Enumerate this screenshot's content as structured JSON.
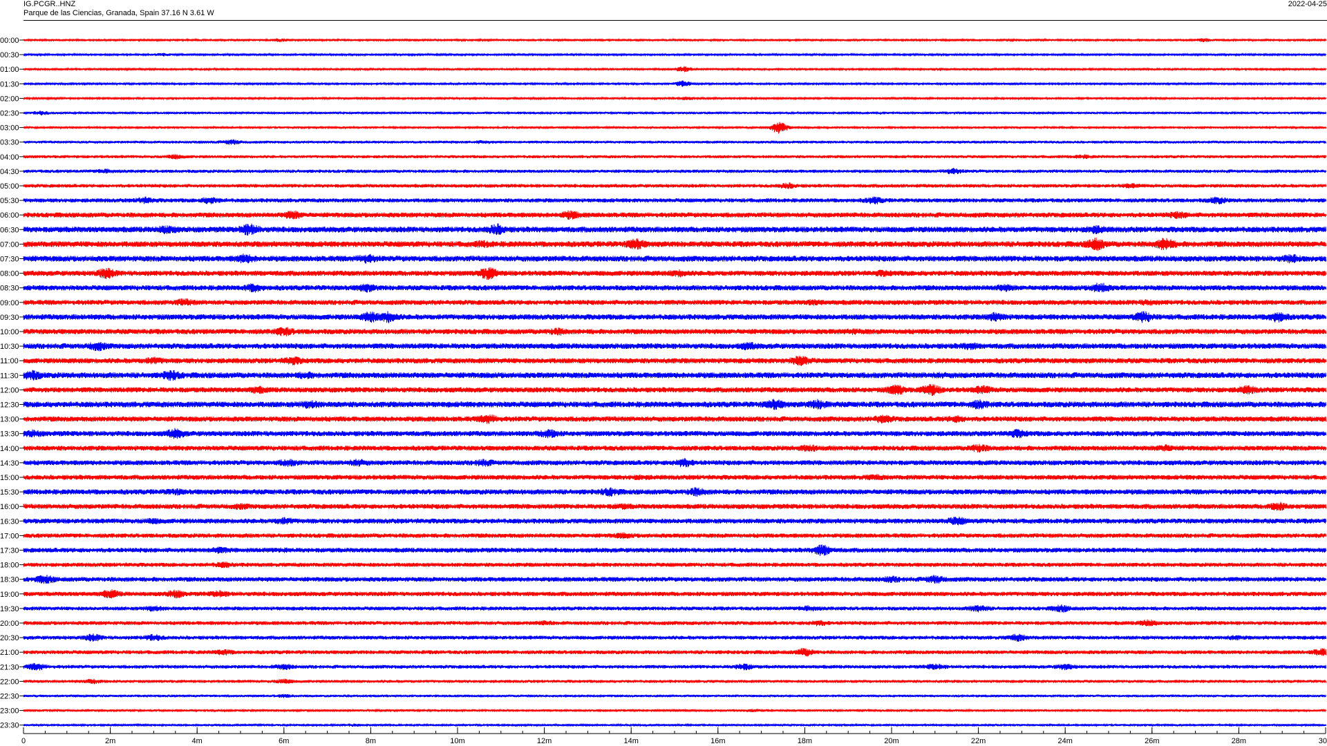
{
  "header": {
    "station": "IG.PCGR..HNZ",
    "location": "Parque de las Ciencias, Granada, Spain  37.16 N 3.61 W",
    "date": "2022-04-25"
  },
  "colors": {
    "odd_rows": "#ff0000",
    "even_rows": "#0000ff",
    "axis": "#000000"
  },
  "chart_data": {
    "type": "line",
    "title": "IG.PCGR..HNZ",
    "subtitle": "Parque de las Ciencias, Granada, Spain  37.16 N 3.61 W",
    "xlabel": "",
    "ylabel": "",
    "x_unit": "minutes",
    "xlim": [
      0,
      30
    ],
    "x_ticks": [
      {
        "value": 0,
        "label": "0"
      },
      {
        "value": 2,
        "label": "2m"
      },
      {
        "value": 4,
        "label": "4m"
      },
      {
        "value": 6,
        "label": "6m"
      },
      {
        "value": 8,
        "label": "8m"
      },
      {
        "value": 10,
        "label": "10m"
      },
      {
        "value": 12,
        "label": "12m"
      },
      {
        "value": 14,
        "label": "14m"
      },
      {
        "value": 16,
        "label": "16m"
      },
      {
        "value": 18,
        "label": "18m"
      },
      {
        "value": 20,
        "label": "20m"
      },
      {
        "value": 22,
        "label": "22m"
      },
      {
        "value": 24,
        "label": "24m"
      },
      {
        "value": 26,
        "label": "26m"
      },
      {
        "value": 28,
        "label": "28m"
      },
      {
        "value": 30,
        "label": "30"
      }
    ],
    "series": [
      {
        "name": "00:00",
        "amplitude": 0.15,
        "bursts": [
          {
            "t": 5.9,
            "a": 0.3
          },
          {
            "t": 27.2,
            "a": 0.3
          }
        ]
      },
      {
        "name": "00:30",
        "amplitude": 0.13,
        "bursts": [
          {
            "t": 3.2,
            "a": 0.25
          }
        ]
      },
      {
        "name": "01:00",
        "amplitude": 0.15,
        "bursts": [
          {
            "t": 15.2,
            "a": 0.45
          },
          {
            "t": 21.1,
            "a": 0.25
          }
        ]
      },
      {
        "name": "01:30",
        "amplitude": 0.13,
        "bursts": [
          {
            "t": 15.2,
            "a": 0.5
          }
        ]
      },
      {
        "name": "02:00",
        "amplitude": 0.14,
        "bursts": [
          {
            "t": 15.3,
            "a": 0.3
          }
        ]
      },
      {
        "name": "02:30",
        "amplitude": 0.16,
        "bursts": [
          {
            "t": 0.4,
            "a": 0.35
          }
        ]
      },
      {
        "name": "03:00",
        "amplitude": 0.15,
        "bursts": [
          {
            "t": 17.4,
            "a": 0.9
          }
        ]
      },
      {
        "name": "03:30",
        "amplitude": 0.2,
        "bursts": [
          {
            "t": 4.8,
            "a": 0.45
          },
          {
            "t": 10.6,
            "a": 0.3
          }
        ]
      },
      {
        "name": "04:00",
        "amplitude": 0.22,
        "bursts": [
          {
            "t": 3.5,
            "a": 0.4
          },
          {
            "t": 24.4,
            "a": 0.35
          }
        ]
      },
      {
        "name": "04:30",
        "amplitude": 0.24,
        "bursts": [
          {
            "t": 1.9,
            "a": 0.4
          },
          {
            "t": 21.4,
            "a": 0.5
          }
        ]
      },
      {
        "name": "05:00",
        "amplitude": 0.26,
        "bursts": [
          {
            "t": 17.6,
            "a": 0.5
          },
          {
            "t": 25.5,
            "a": 0.4
          }
        ]
      },
      {
        "name": "05:30",
        "amplitude": 0.3,
        "bursts": [
          {
            "t": 2.8,
            "a": 0.55
          },
          {
            "t": 4.3,
            "a": 0.6
          },
          {
            "t": 19.6,
            "a": 0.6
          },
          {
            "t": 27.5,
            "a": 0.6
          }
        ]
      },
      {
        "name": "06:00",
        "amplitude": 0.36,
        "bursts": [
          {
            "t": 6.2,
            "a": 0.7
          },
          {
            "t": 12.6,
            "a": 0.7
          },
          {
            "t": 26.6,
            "a": 0.6
          }
        ]
      },
      {
        "name": "06:30",
        "amplitude": 0.42,
        "bursts": [
          {
            "t": 3.3,
            "a": 0.7
          },
          {
            "t": 5.2,
            "a": 0.95
          },
          {
            "t": 10.9,
            "a": 0.9
          },
          {
            "t": 24.7,
            "a": 0.7
          }
        ]
      },
      {
        "name": "07:00",
        "amplitude": 0.42,
        "bursts": [
          {
            "t": 14.1,
            "a": 0.9
          },
          {
            "t": 24.7,
            "a": 1.0
          },
          {
            "t": 26.3,
            "a": 1.0
          },
          {
            "t": 10.6,
            "a": 0.6
          }
        ]
      },
      {
        "name": "07:30",
        "amplitude": 0.42,
        "bursts": [
          {
            "t": 5.1,
            "a": 0.75
          },
          {
            "t": 7.9,
            "a": 0.75
          },
          {
            "t": 29.2,
            "a": 0.7
          }
        ]
      },
      {
        "name": "08:00",
        "amplitude": 0.38,
        "bursts": [
          {
            "t": 1.9,
            "a": 0.85
          },
          {
            "t": 10.7,
            "a": 1.0
          },
          {
            "t": 15.1,
            "a": 0.6
          },
          {
            "t": 19.8,
            "a": 0.55
          }
        ]
      },
      {
        "name": "08:30",
        "amplitude": 0.38,
        "bursts": [
          {
            "t": 5.3,
            "a": 0.7
          },
          {
            "t": 7.9,
            "a": 0.7
          },
          {
            "t": 22.6,
            "a": 0.6
          },
          {
            "t": 24.8,
            "a": 0.8
          }
        ]
      },
      {
        "name": "09:00",
        "amplitude": 0.36,
        "bursts": [
          {
            "t": 3.7,
            "a": 0.6
          },
          {
            "t": 18.2,
            "a": 0.5
          },
          {
            "t": 25.9,
            "a": 0.5
          }
        ]
      },
      {
        "name": "09:30",
        "amplitude": 0.4,
        "bursts": [
          {
            "t": 8.0,
            "a": 0.85
          },
          {
            "t": 8.4,
            "a": 0.9
          },
          {
            "t": 22.4,
            "a": 0.75
          },
          {
            "t": 25.8,
            "a": 0.9
          },
          {
            "t": 28.9,
            "a": 0.85
          }
        ]
      },
      {
        "name": "10:00",
        "amplitude": 0.38,
        "bursts": [
          {
            "t": 6.0,
            "a": 0.75
          },
          {
            "t": 12.3,
            "a": 0.6
          },
          {
            "t": 19.1,
            "a": 0.5
          }
        ]
      },
      {
        "name": "10:30",
        "amplitude": 0.4,
        "bursts": [
          {
            "t": 1.7,
            "a": 0.75
          },
          {
            "t": 16.7,
            "a": 0.65
          },
          {
            "t": 21.8,
            "a": 0.6
          }
        ]
      },
      {
        "name": "11:00",
        "amplitude": 0.38,
        "bursts": [
          {
            "t": 6.2,
            "a": 0.7
          },
          {
            "t": 17.9,
            "a": 0.85
          },
          {
            "t": 3.0,
            "a": 0.6
          }
        ]
      },
      {
        "name": "11:30",
        "amplitude": 0.42,
        "bursts": [
          {
            "t": 0.2,
            "a": 0.8
          },
          {
            "t": 3.4,
            "a": 0.85
          },
          {
            "t": 6.5,
            "a": 0.6
          },
          {
            "t": 21.1,
            "a": 0.5
          }
        ]
      },
      {
        "name": "12:00",
        "amplitude": 0.38,
        "bursts": [
          {
            "t": 5.4,
            "a": 0.6
          },
          {
            "t": 20.1,
            "a": 0.85
          },
          {
            "t": 20.9,
            "a": 0.95
          },
          {
            "t": 22.1,
            "a": 0.7
          },
          {
            "t": 28.2,
            "a": 0.7
          }
        ]
      },
      {
        "name": "12:30",
        "amplitude": 0.42,
        "bursts": [
          {
            "t": 6.6,
            "a": 0.7
          },
          {
            "t": 17.3,
            "a": 0.85
          },
          {
            "t": 18.3,
            "a": 0.8
          },
          {
            "t": 22.0,
            "a": 0.75
          }
        ]
      },
      {
        "name": "13:00",
        "amplitude": 0.38,
        "bursts": [
          {
            "t": 10.7,
            "a": 0.75
          },
          {
            "t": 19.8,
            "a": 0.7
          },
          {
            "t": 21.5,
            "a": 0.6
          }
        ]
      },
      {
        "name": "13:30",
        "amplitude": 0.38,
        "bursts": [
          {
            "t": 0.2,
            "a": 0.6
          },
          {
            "t": 3.5,
            "a": 0.8
          },
          {
            "t": 12.1,
            "a": 0.75
          },
          {
            "t": 22.9,
            "a": 0.7
          }
        ]
      },
      {
        "name": "14:00",
        "amplitude": 0.36,
        "bursts": [
          {
            "t": 18.1,
            "a": 0.6
          },
          {
            "t": 26.3,
            "a": 0.6
          },
          {
            "t": 22.0,
            "a": 0.7
          }
        ]
      },
      {
        "name": "14:30",
        "amplitude": 0.36,
        "bursts": [
          {
            "t": 6.1,
            "a": 0.6
          },
          {
            "t": 7.7,
            "a": 0.6
          },
          {
            "t": 10.6,
            "a": 0.6
          },
          {
            "t": 15.2,
            "a": 0.75
          }
        ]
      },
      {
        "name": "15:00",
        "amplitude": 0.35,
        "bursts": [
          {
            "t": 19.6,
            "a": 0.5
          },
          {
            "t": 14.2,
            "a": 0.45
          }
        ]
      },
      {
        "name": "15:30",
        "amplitude": 0.38,
        "bursts": [
          {
            "t": 3.5,
            "a": 0.55
          },
          {
            "t": 13.5,
            "a": 0.7
          },
          {
            "t": 15.5,
            "a": 0.7
          }
        ]
      },
      {
        "name": "16:00",
        "amplitude": 0.36,
        "bursts": [
          {
            "t": 5.0,
            "a": 0.5
          },
          {
            "t": 13.8,
            "a": 0.5
          },
          {
            "t": 28.9,
            "a": 0.7
          }
        ]
      },
      {
        "name": "16:30",
        "amplitude": 0.36,
        "bursts": [
          {
            "t": 6.0,
            "a": 0.6
          },
          {
            "t": 21.5,
            "a": 0.7
          },
          {
            "t": 3.0,
            "a": 0.5
          }
        ]
      },
      {
        "name": "17:00",
        "amplitude": 0.32,
        "bursts": [
          {
            "t": 13.8,
            "a": 0.5
          }
        ]
      },
      {
        "name": "17:30",
        "amplitude": 0.34,
        "bursts": [
          {
            "t": 4.5,
            "a": 0.55
          },
          {
            "t": 18.4,
            "a": 0.9
          },
          {
            "t": 6.0,
            "a": 0.4
          }
        ]
      },
      {
        "name": "18:00",
        "amplitude": 0.3,
        "bursts": [
          {
            "t": 4.6,
            "a": 0.5
          }
        ]
      },
      {
        "name": "18:30",
        "amplitude": 0.34,
        "bursts": [
          {
            "t": 0.5,
            "a": 0.7
          },
          {
            "t": 20.0,
            "a": 0.55
          },
          {
            "t": 21.0,
            "a": 0.7
          }
        ]
      },
      {
        "name": "19:00",
        "amplitude": 0.32,
        "bursts": [
          {
            "t": 2.0,
            "a": 0.7
          },
          {
            "t": 3.5,
            "a": 0.65
          },
          {
            "t": 4.5,
            "a": 0.55
          }
        ]
      },
      {
        "name": "19:30",
        "amplitude": 0.28,
        "bursts": [
          {
            "t": 3.0,
            "a": 0.5
          },
          {
            "t": 18.1,
            "a": 0.5
          },
          {
            "t": 22.0,
            "a": 0.6
          },
          {
            "t": 23.9,
            "a": 0.6
          }
        ]
      },
      {
        "name": "20:00",
        "amplitude": 0.28,
        "bursts": [
          {
            "t": 18.3,
            "a": 0.5
          },
          {
            "t": 25.9,
            "a": 0.55
          },
          {
            "t": 12.0,
            "a": 0.4
          }
        ]
      },
      {
        "name": "20:30",
        "amplitude": 0.28,
        "bursts": [
          {
            "t": 1.6,
            "a": 0.6
          },
          {
            "t": 3.0,
            "a": 0.55
          },
          {
            "t": 22.9,
            "a": 0.6
          },
          {
            "t": 27.9,
            "a": 0.4
          }
        ]
      },
      {
        "name": "21:00",
        "amplitude": 0.28,
        "bursts": [
          {
            "t": 4.6,
            "a": 0.5
          },
          {
            "t": 18.0,
            "a": 0.65
          },
          {
            "t": 29.9,
            "a": 0.6
          }
        ]
      },
      {
        "name": "21:30",
        "amplitude": 0.26,
        "bursts": [
          {
            "t": 0.3,
            "a": 0.6
          },
          {
            "t": 6.0,
            "a": 0.5
          },
          {
            "t": 16.6,
            "a": 0.55
          },
          {
            "t": 21.0,
            "a": 0.5
          },
          {
            "t": 24.0,
            "a": 0.5
          }
        ]
      },
      {
        "name": "22:00",
        "amplitude": 0.22,
        "bursts": [
          {
            "t": 1.6,
            "a": 0.4
          },
          {
            "t": 6.0,
            "a": 0.4
          }
        ]
      },
      {
        "name": "22:30",
        "amplitude": 0.18,
        "bursts": [
          {
            "t": 6.0,
            "a": 0.3
          }
        ]
      },
      {
        "name": "23:00",
        "amplitude": 0.16,
        "bursts": [
          {
            "t": 16.8,
            "a": 0.25
          }
        ]
      },
      {
        "name": "23:30",
        "amplitude": 0.15,
        "bursts": [
          {
            "t": 7.6,
            "a": 0.25
          }
        ]
      }
    ]
  }
}
